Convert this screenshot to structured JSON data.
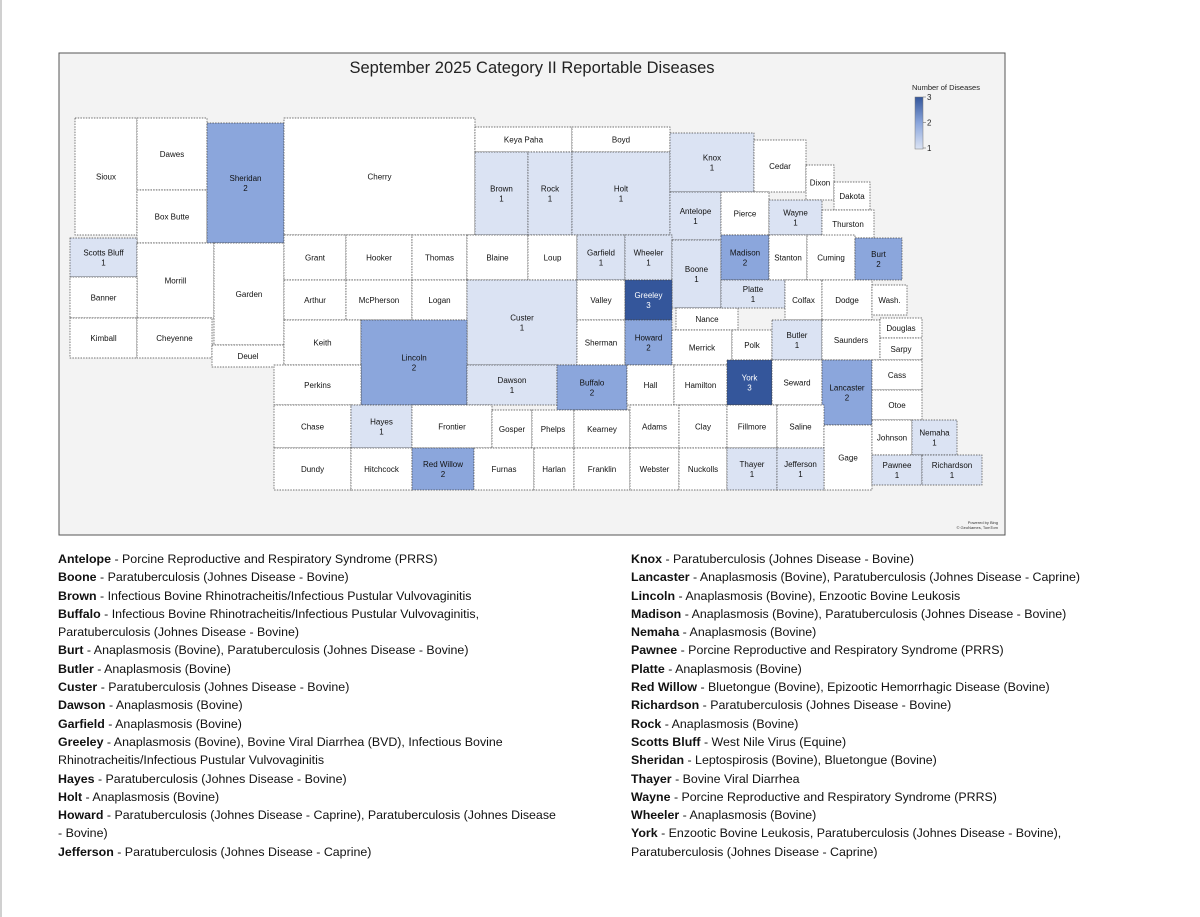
{
  "map": {
    "title": "September 2025 Category II Reportable Diseases",
    "legend": {
      "title": "Number of Diseases",
      "ticks": [
        1,
        2,
        3
      ],
      "colors": [
        "#dbe3f3",
        "#8ba6dc",
        "#34569b"
      ]
    },
    "credit": [
      "Powered by Bing",
      "© GeoNames, TomTom"
    ],
    "counties": [
      {
        "name": "Sioux"
      },
      {
        "name": "Dawes"
      },
      {
        "name": "Box Butte"
      },
      {
        "name": "Sheridan",
        "count": 2
      },
      {
        "name": "Cherry"
      },
      {
        "name": "Keya Paha"
      },
      {
        "name": "Boyd"
      },
      {
        "name": "Brown",
        "count": 1
      },
      {
        "name": "Rock",
        "count": 1
      },
      {
        "name": "Holt",
        "count": 1
      },
      {
        "name": "Knox",
        "count": 1
      },
      {
        "name": "Cedar"
      },
      {
        "name": "Dixon"
      },
      {
        "name": "Dakota"
      },
      {
        "name": "Antelope",
        "count": 1
      },
      {
        "name": "Pierce"
      },
      {
        "name": "Wayne",
        "count": 1
      },
      {
        "name": "Thurston"
      },
      {
        "name": "Scotts Bluff",
        "count": 1
      },
      {
        "name": "Morrill"
      },
      {
        "name": "Garden"
      },
      {
        "name": "Banner"
      },
      {
        "name": "Kimball"
      },
      {
        "name": "Cheyenne"
      },
      {
        "name": "Deuel"
      },
      {
        "name": "Grant"
      },
      {
        "name": "Hooker"
      },
      {
        "name": "Thomas"
      },
      {
        "name": "Blaine"
      },
      {
        "name": "Loup"
      },
      {
        "name": "Garfield",
        "count": 1
      },
      {
        "name": "Wheeler",
        "count": 1
      },
      {
        "name": "Boone",
        "count": 1
      },
      {
        "name": "Madison",
        "count": 2
      },
      {
        "name": "Stanton"
      },
      {
        "name": "Cuming"
      },
      {
        "name": "Burt",
        "count": 2
      },
      {
        "name": "Arthur"
      },
      {
        "name": "McPherson"
      },
      {
        "name": "Logan"
      },
      {
        "name": "Custer",
        "count": 1
      },
      {
        "name": "Valley"
      },
      {
        "name": "Greeley",
        "count": 3
      },
      {
        "name": "Nance"
      },
      {
        "name": "Platte",
        "count": 1
      },
      {
        "name": "Colfax"
      },
      {
        "name": "Dodge"
      },
      {
        "name": "Wash."
      },
      {
        "name": "Keith"
      },
      {
        "name": "Lincoln",
        "count": 2
      },
      {
        "name": "Sherman"
      },
      {
        "name": "Howard",
        "count": 2
      },
      {
        "name": "Merrick"
      },
      {
        "name": "Polk"
      },
      {
        "name": "Butler",
        "count": 1
      },
      {
        "name": "Saunders"
      },
      {
        "name": "Douglas"
      },
      {
        "name": "Sarpy"
      },
      {
        "name": "Perkins"
      },
      {
        "name": "Dawson",
        "count": 1
      },
      {
        "name": "Buffalo",
        "count": 2
      },
      {
        "name": "Hall"
      },
      {
        "name": "Hamilton"
      },
      {
        "name": "York",
        "count": 3
      },
      {
        "name": "Seward"
      },
      {
        "name": "Lancaster",
        "count": 2
      },
      {
        "name": "Cass"
      },
      {
        "name": "Chase"
      },
      {
        "name": "Hayes",
        "count": 1
      },
      {
        "name": "Frontier"
      },
      {
        "name": "Gosper"
      },
      {
        "name": "Phelps"
      },
      {
        "name": "Kearney"
      },
      {
        "name": "Adams"
      },
      {
        "name": "Clay"
      },
      {
        "name": "Fillmore"
      },
      {
        "name": "Saline"
      },
      {
        "name": "Gage"
      },
      {
        "name": "Otoe"
      },
      {
        "name": "Johnson"
      },
      {
        "name": "Nemaha",
        "count": 1
      },
      {
        "name": "Dundy"
      },
      {
        "name": "Hitchcock"
      },
      {
        "name": "Red Willow",
        "count": 2
      },
      {
        "name": "Furnas"
      },
      {
        "name": "Harlan"
      },
      {
        "name": "Franklin"
      },
      {
        "name": "Webster"
      },
      {
        "name": "Nuckolls"
      },
      {
        "name": "Thayer",
        "count": 1
      },
      {
        "name": "Jefferson",
        "count": 1
      },
      {
        "name": "Pawnee",
        "count": 1
      },
      {
        "name": "Richardson",
        "count": 1
      }
    ]
  },
  "list": {
    "left": [
      {
        "county": "Antelope",
        "text": "- Porcine Reproductive and Respiratory Syndrome (PRRS)"
      },
      {
        "county": "Boone",
        "text": "- Paratuberculosis (Johnes Disease - Bovine)"
      },
      {
        "county": "Brown",
        "text": "- Infectious Bovine Rhinotracheitis/Infectious Pustular Vulvovaginitis"
      },
      {
        "county": "Buffalo",
        "text": "- Infectious Bovine Rhinotracheitis/Infectious Pustular Vulvovaginitis, Paratuberculosis (Johnes Disease - Bovine)"
      },
      {
        "county": "Burt",
        "text": "- Anaplasmosis (Bovine), Paratuberculosis (Johnes Disease - Bovine)"
      },
      {
        "county": "Butler",
        "text": "- Anaplasmosis (Bovine)"
      },
      {
        "county": "Custer",
        "text": "- Paratuberculosis (Johnes Disease - Bovine)"
      },
      {
        "county": "Dawson",
        "text": "- Anaplasmosis (Bovine)"
      },
      {
        "county": "Garfield",
        "text": "- Anaplasmosis (Bovine)"
      },
      {
        "county": "Greeley",
        "text": "- Anaplasmosis (Bovine), Bovine Viral Diarrhea (BVD), Infectious Bovine Rhinotracheitis/Infectious Pustular Vulvovaginitis"
      },
      {
        "county": "Hayes",
        "text": "- Paratuberculosis (Johnes Disease - Bovine)"
      },
      {
        "county": "Holt",
        "text": "- Anaplasmosis (Bovine)"
      },
      {
        "county": "Howard",
        "text": "- Paratuberculosis (Johnes Disease - Caprine), Paratuberculosis (Johnes Disease - Bovine)"
      },
      {
        "county": "Jefferson",
        "text": "- Paratuberculosis (Johnes Disease - Caprine)"
      }
    ],
    "right": [
      {
        "county": "Knox",
        "text": "- Paratuberculosis (Johnes Disease - Bovine)"
      },
      {
        "county": "Lancaster",
        "text": "- Anaplasmosis (Bovine), Paratuberculosis (Johnes Disease - Caprine)"
      },
      {
        "county": "Lincoln",
        "text": "- Anaplasmosis (Bovine), Enzootic Bovine Leukosis"
      },
      {
        "county": "Madison",
        "text": "- Anaplasmosis (Bovine), Paratuberculosis (Johnes Disease - Bovine)"
      },
      {
        "county": "Nemaha",
        "text": "- Anaplasmosis (Bovine)"
      },
      {
        "county": "Pawnee",
        "text": "- Porcine Reproductive and Respiratory Syndrome (PRRS)"
      },
      {
        "county": "Platte",
        "text": "- Anaplasmosis (Bovine)"
      },
      {
        "county": "Red Willow",
        "text": "- Bluetongue (Bovine), Epizootic Hemorrhagic Disease (Bovine)"
      },
      {
        "county": "Richardson",
        "text": "- Paratuberculosis (Johnes Disease - Bovine)"
      },
      {
        "county": "Rock",
        "text": "- Anaplasmosis (Bovine)"
      },
      {
        "county": "Scotts Bluff",
        "text": "- West Nile Virus (Equine)"
      },
      {
        "county": "Sheridan",
        "text": "- Leptospirosis (Bovine), Bluetongue (Bovine)"
      },
      {
        "county": "Thayer",
        "text": "- Bovine Viral Diarrhea"
      },
      {
        "county": "Wayne",
        "text": "- Porcine Reproductive and Respiratory Syndrome (PRRS)"
      },
      {
        "county": "Wheeler",
        "text": "- Anaplasmosis (Bovine)"
      },
      {
        "county": "York",
        "text": "- Enzootic Bovine Leukosis, Paratuberculosis (Johnes Disease - Bovine), Paratuberculosis (Johnes Disease - Caprine)"
      }
    ]
  }
}
